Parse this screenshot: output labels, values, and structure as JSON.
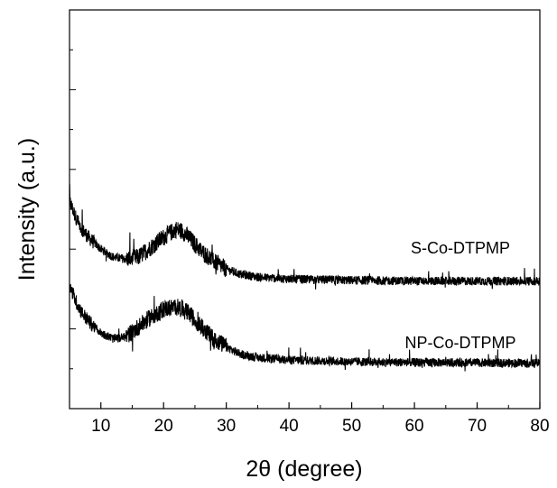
{
  "chart_data": {
    "type": "line",
    "title": "",
    "xlabel": "2θ (degree)",
    "ylabel": "Intensity (a.u.)",
    "xlim": [
      5,
      80
    ],
    "ylim": [
      0,
      100
    ],
    "x_ticks": [
      10,
      20,
      30,
      40,
      50,
      60,
      70,
      80
    ],
    "y_ticks_labeled": false,
    "grid": false,
    "legend": "none",
    "line_color": "#000000",
    "series": [
      {
        "name": "S-Co-DTPMP",
        "points": [
          [
            5,
            52
          ],
          [
            6,
            48
          ],
          [
            7,
            45
          ],
          [
            8,
            43
          ],
          [
            10,
            40
          ],
          [
            12,
            38
          ],
          [
            14,
            37.5
          ],
          [
            16,
            38
          ],
          [
            18,
            40.5
          ],
          [
            20,
            43
          ],
          [
            22,
            45
          ],
          [
            23,
            44.5
          ],
          [
            24,
            43
          ],
          [
            26,
            39.5
          ],
          [
            28,
            37
          ],
          [
            30,
            35
          ],
          [
            32,
            33.8
          ],
          [
            35,
            33
          ],
          [
            40,
            32.5
          ],
          [
            50,
            32.2
          ],
          [
            60,
            32
          ],
          [
            70,
            32
          ],
          [
            80,
            32
          ]
        ]
      },
      {
        "name": "NP-Co-DTPMP",
        "points": [
          [
            5,
            31
          ],
          [
            6,
            27
          ],
          [
            7,
            24
          ],
          [
            8,
            22
          ],
          [
            10,
            19
          ],
          [
            12,
            17.5
          ],
          [
            14,
            18
          ],
          [
            16,
            20.5
          ],
          [
            18,
            23
          ],
          [
            20,
            25
          ],
          [
            22,
            25.5
          ],
          [
            23,
            25
          ],
          [
            24,
            24
          ],
          [
            26,
            20.5
          ],
          [
            28,
            17.5
          ],
          [
            30,
            15.5
          ],
          [
            32,
            13.8
          ],
          [
            35,
            12.8
          ],
          [
            40,
            12.2
          ],
          [
            50,
            11.8
          ],
          [
            60,
            11.6
          ],
          [
            70,
            11.5
          ],
          [
            80,
            11.4
          ]
        ]
      }
    ]
  }
}
